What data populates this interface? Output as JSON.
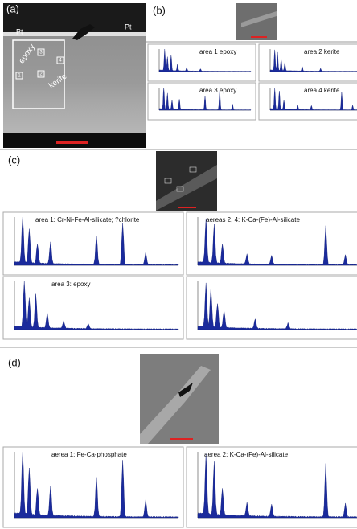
{
  "panel_a": {
    "label": "(a)",
    "pt_left": "Pt",
    "pt_right": "Pt",
    "epoxy": "epoxy",
    "kerite": "kerite",
    "areas": [
      "1",
      "2",
      "3",
      "4"
    ]
  },
  "panel_b": {
    "label": "(b)",
    "spectra": [
      "area 1 epoxy",
      "area 2 kerite",
      "area 3 epoxy",
      "area 4 kerite"
    ]
  },
  "panel_c": {
    "label": "(c)",
    "spectra": [
      "area 1: Cr-Ni-Fe-Al-silicate; ?chlorite",
      "aereas 2, 4: K-Ca-(Fe)-Al-silicate",
      "area 3: epoxy"
    ]
  },
  "panel_d": {
    "label": "(d)",
    "spectra": [
      "aerea 1: Fe-Ca-phosphate",
      "aerea 2: K-Ca-(Fe)-Al-silicate"
    ]
  }
}
